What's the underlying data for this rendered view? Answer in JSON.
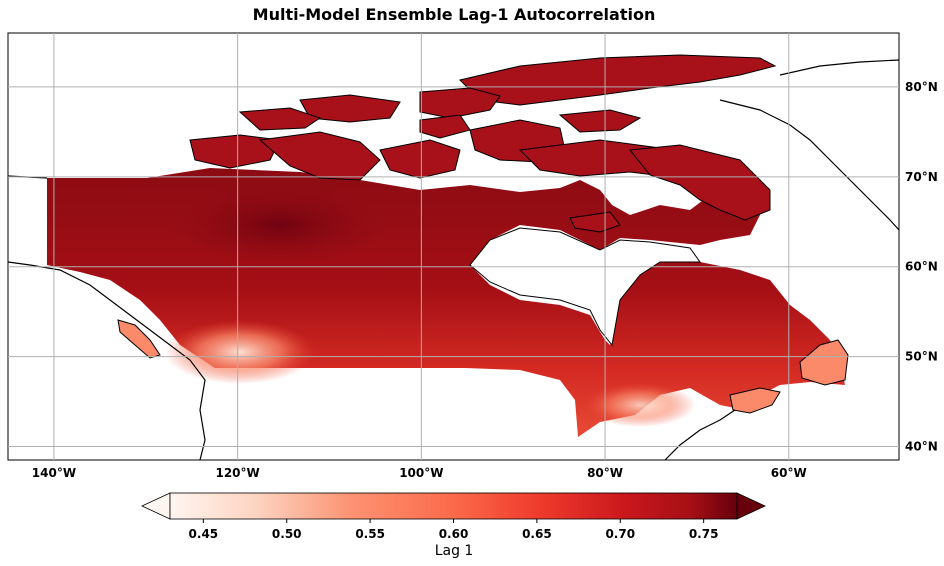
{
  "title": "Multi-Model Ensemble Lag-1 Autocorrelation",
  "map": {
    "projection": "PlateCarree",
    "lon_range": [
      -145,
      -48
    ],
    "lat_range": [
      38.5,
      86
    ],
    "lon_ticks": [
      {
        "lon": -140,
        "label": "140°W"
      },
      {
        "lon": -120,
        "label": "120°W"
      },
      {
        "lon": -100,
        "label": "100°W"
      },
      {
        "lon": -80,
        "label": "80°W"
      },
      {
        "lon": -60,
        "label": "60°W"
      }
    ],
    "lat_ticks": [
      {
        "lat": 80,
        "label": "80°N"
      },
      {
        "lat": 70,
        "label": "70°N"
      },
      {
        "lat": 60,
        "label": "60°N"
      },
      {
        "lat": 50,
        "label": "50°N"
      },
      {
        "lat": 40,
        "label": "40°N"
      }
    ],
    "gridlines": true,
    "region": "Canada",
    "colormap": "Reds",
    "value_range_shown": [
      0.45,
      0.77
    ]
  },
  "colorbar": {
    "label": "Lag 1",
    "ticks": [
      "0.45",
      "0.50",
      "0.55",
      "0.60",
      "0.65",
      "0.70",
      "0.75"
    ],
    "tick_values": [
      0.45,
      0.5,
      0.55,
      0.6,
      0.65,
      0.7,
      0.75
    ],
    "vmin": 0.43,
    "vmax": 0.77,
    "extend": "both"
  },
  "colors": {
    "low": "#fff5f0",
    "mid": "#ef3b2c",
    "high": "#67000d",
    "coast": "#000000",
    "grid": "#b0b0b0"
  }
}
